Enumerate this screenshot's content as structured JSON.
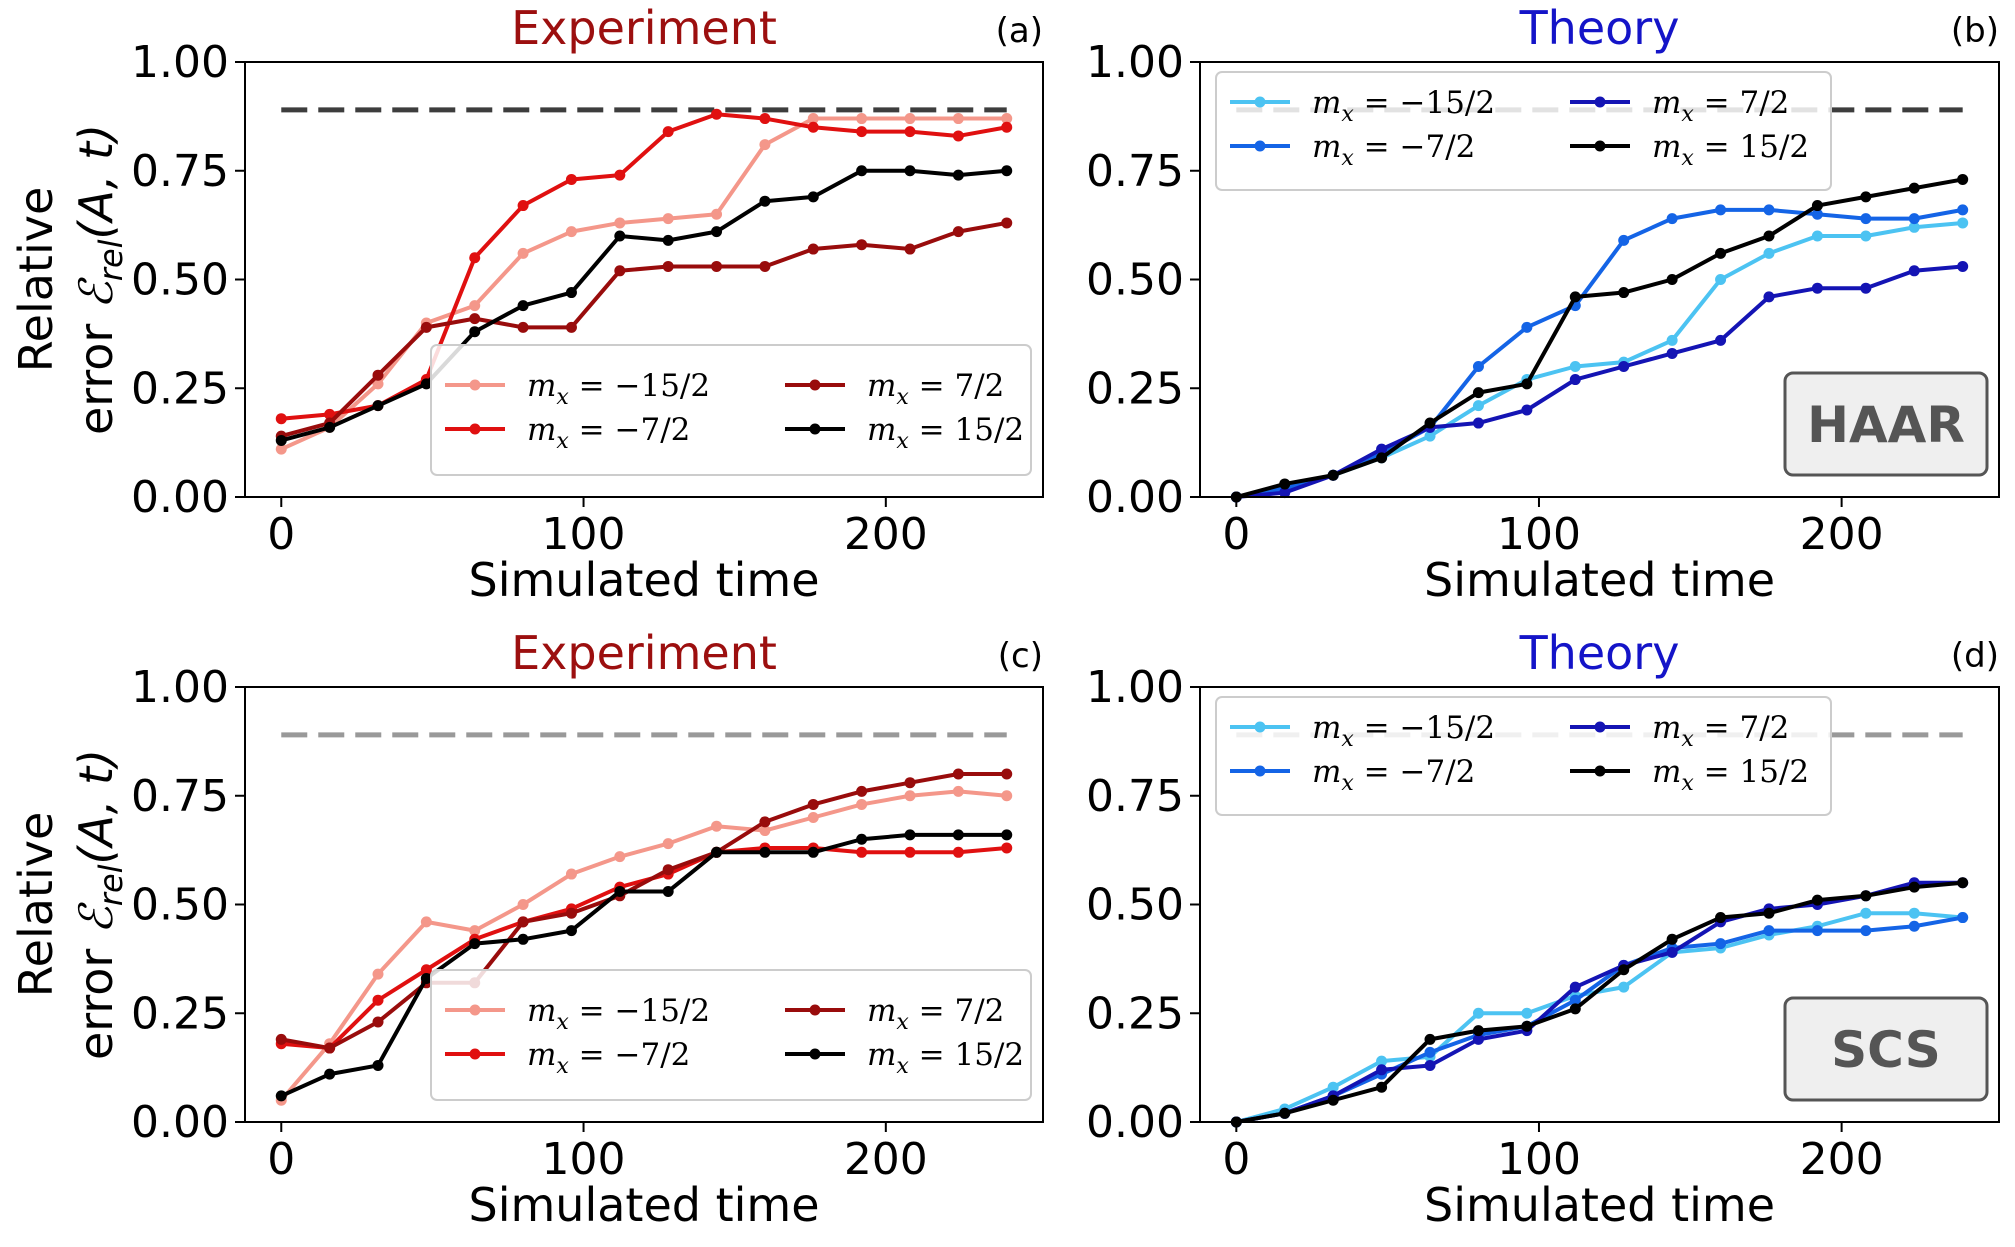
{
  "chart_data": [
    {
      "panel": "(a)",
      "type": "line",
      "title": "Experiment",
      "title_color": "#9c0f0f",
      "xlabel": "Simulated time",
      "ylabel_line1": "Relative",
      "ylabel_line2": "error ℰ_rel(A, t)",
      "xlim": [
        -12,
        252
      ],
      "ylim": [
        0,
        1
      ],
      "xticks": [
        0,
        100,
        200
      ],
      "yticks": [
        0.0,
        0.25,
        0.5,
        0.75,
        1.0
      ],
      "reference_line": {
        "y": 0.89,
        "color": "#3d3d3d"
      },
      "legend_placement": "lower-right",
      "x": [
        0,
        16,
        32,
        48,
        64,
        80,
        96,
        112,
        128,
        144,
        160,
        176,
        192,
        208,
        224,
        240
      ],
      "series": [
        {
          "name": "m_x = −15/2",
          "legend_label": "mx = −15/2",
          "color": "#f4978a",
          "values": [
            0.11,
            0.16,
            0.26,
            0.4,
            0.44,
            0.56,
            0.61,
            0.63,
            0.64,
            0.65,
            0.81,
            0.87,
            0.87,
            0.87,
            0.87,
            0.87
          ]
        },
        {
          "name": "m_x = −7/2",
          "legend_label": "mx = −7/2",
          "color": "#e01010",
          "values": [
            0.18,
            0.19,
            0.21,
            0.27,
            0.55,
            0.67,
            0.73,
            0.74,
            0.84,
            0.88,
            0.87,
            0.85,
            0.84,
            0.84,
            0.83,
            0.85
          ]
        },
        {
          "name": "m_x = 7/2",
          "legend_label": "mx = 7/2",
          "color": "#990c0c",
          "values": [
            0.14,
            0.17,
            0.28,
            0.39,
            0.41,
            0.39,
            0.39,
            0.52,
            0.53,
            0.53,
            0.53,
            0.57,
            0.58,
            0.57,
            0.61,
            0.63
          ]
        },
        {
          "name": "m_x = 15/2",
          "legend_label": "mx = 15/2",
          "color": "#000000",
          "values": [
            0.13,
            0.16,
            0.21,
            0.26,
            0.38,
            0.44,
            0.47,
            0.6,
            0.59,
            0.61,
            0.68,
            0.69,
            0.75,
            0.75,
            0.74,
            0.75
          ]
        }
      ]
    },
    {
      "panel": "(b)",
      "type": "line",
      "title": "Theory",
      "title_color": "#1414c8",
      "xlabel": "Simulated time",
      "xlim": [
        -12,
        252
      ],
      "ylim": [
        0,
        1
      ],
      "xticks": [
        0,
        100,
        200
      ],
      "yticks": [
        0.0,
        0.25,
        0.5,
        0.75,
        1.0
      ],
      "reference_line": {
        "y": 0.89,
        "color": "#3d3d3d"
      },
      "legend_placement": "top-left",
      "badge": "HAAR",
      "x": [
        0,
        16,
        32,
        48,
        64,
        80,
        96,
        112,
        128,
        144,
        160,
        176,
        192,
        208,
        224,
        240
      ],
      "series": [
        {
          "name": "m_x = −15/2",
          "legend_label": "mx = −15/2",
          "color": "#4cc3f2",
          "values": [
            0.0,
            0.02,
            0.05,
            0.09,
            0.14,
            0.21,
            0.27,
            0.3,
            0.31,
            0.36,
            0.5,
            0.56,
            0.6,
            0.6,
            0.62,
            0.63
          ]
        },
        {
          "name": "m_x = −7/2",
          "legend_label": "mx = −7/2",
          "color": "#1464e6",
          "values": [
            0.0,
            0.02,
            0.05,
            0.1,
            0.16,
            0.3,
            0.39,
            0.44,
            0.59,
            0.64,
            0.66,
            0.66,
            0.65,
            0.64,
            0.64,
            0.66
          ]
        },
        {
          "name": "m_x = 7/2",
          "legend_label": "mx = 7/2",
          "color": "#1414b4",
          "values": [
            0.0,
            0.01,
            0.05,
            0.11,
            0.16,
            0.17,
            0.2,
            0.27,
            0.3,
            0.33,
            0.36,
            0.46,
            0.48,
            0.48,
            0.52,
            0.53
          ]
        },
        {
          "name": "m_x = 15/2",
          "legend_label": "mx = 15/2",
          "color": "#000000",
          "values": [
            0.0,
            0.03,
            0.05,
            0.09,
            0.17,
            0.24,
            0.26,
            0.46,
            0.47,
            0.5,
            0.56,
            0.6,
            0.67,
            0.69,
            0.71,
            0.73
          ]
        }
      ]
    },
    {
      "panel": "(c)",
      "type": "line",
      "title": "Experiment",
      "title_color": "#9c0f0f",
      "xlabel": "Simulated time",
      "ylabel_line1": "Relative",
      "ylabel_line2": "error ℰ_rel(A, t)",
      "xlim": [
        -12,
        252
      ],
      "ylim": [
        0,
        1
      ],
      "xticks": [
        0,
        100,
        200
      ],
      "yticks": [
        0.0,
        0.25,
        0.5,
        0.75,
        1.0
      ],
      "reference_line": {
        "y": 0.89,
        "color": "#999999"
      },
      "legend_placement": "lower-right",
      "x": [
        0,
        16,
        32,
        48,
        64,
        80,
        96,
        112,
        128,
        144,
        160,
        176,
        192,
        208,
        224,
        240
      ],
      "series": [
        {
          "name": "m_x = −15/2",
          "legend_label": "mx = −15/2",
          "color": "#f4978a",
          "values": [
            0.05,
            0.18,
            0.34,
            0.46,
            0.44,
            0.5,
            0.57,
            0.61,
            0.64,
            0.68,
            0.67,
            0.7,
            0.73,
            0.75,
            0.76,
            0.75
          ]
        },
        {
          "name": "m_x = −7/2",
          "legend_label": "mx = −7/2",
          "color": "#e01010",
          "values": [
            0.18,
            0.17,
            0.28,
            0.35,
            0.42,
            0.46,
            0.49,
            0.54,
            0.57,
            0.62,
            0.63,
            0.63,
            0.62,
            0.62,
            0.62,
            0.63
          ]
        },
        {
          "name": "m_x = 7/2",
          "legend_label": "mx = 7/2",
          "color": "#990c0c",
          "values": [
            0.19,
            0.17,
            0.23,
            0.32,
            0.32,
            0.46,
            0.48,
            0.52,
            0.58,
            0.62,
            0.69,
            0.73,
            0.76,
            0.78,
            0.8,
            0.8
          ]
        },
        {
          "name": "m_x = 15/2",
          "legend_label": "mx = 15/2",
          "color": "#000000",
          "values": [
            0.06,
            0.11,
            0.13,
            0.33,
            0.41,
            0.42,
            0.44,
            0.53,
            0.53,
            0.62,
            0.62,
            0.62,
            0.65,
            0.66,
            0.66,
            0.66
          ]
        }
      ]
    },
    {
      "panel": "(d)",
      "type": "line",
      "title": "Theory",
      "title_color": "#1414c8",
      "xlabel": "Simulated time",
      "xlim": [
        -12,
        252
      ],
      "ylim": [
        0,
        1
      ],
      "xticks": [
        0,
        100,
        200
      ],
      "yticks": [
        0.0,
        0.25,
        0.5,
        0.75,
        1.0
      ],
      "reference_line": {
        "y": 0.89,
        "color": "#999999"
      },
      "legend_placement": "top-left",
      "badge": "SCS",
      "x": [
        0,
        16,
        32,
        48,
        64,
        80,
        96,
        112,
        128,
        144,
        160,
        176,
        192,
        208,
        224,
        240
      ],
      "series": [
        {
          "name": "m_x = −15/2",
          "legend_label": "mx = −15/2",
          "color": "#4cc3f2",
          "values": [
            0.0,
            0.03,
            0.08,
            0.14,
            0.15,
            0.25,
            0.25,
            0.29,
            0.31,
            0.39,
            0.4,
            0.43,
            0.45,
            0.48,
            0.48,
            0.47
          ]
        },
        {
          "name": "m_x = −7/2",
          "legend_label": "mx = −7/2",
          "color": "#1464e6",
          "values": [
            0.0,
            0.02,
            0.06,
            0.11,
            0.16,
            0.2,
            0.22,
            0.28,
            0.36,
            0.4,
            0.41,
            0.44,
            0.44,
            0.44,
            0.45,
            0.47
          ]
        },
        {
          "name": "m_x = 7/2",
          "legend_label": "mx = 7/2",
          "color": "#1414b4",
          "values": [
            0.0,
            0.02,
            0.06,
            0.12,
            0.13,
            0.19,
            0.21,
            0.31,
            0.36,
            0.39,
            0.46,
            0.49,
            0.5,
            0.52,
            0.55,
            0.55
          ]
        },
        {
          "name": "m_x = 15/2",
          "legend_label": "mx = 15/2",
          "color": "#000000",
          "values": [
            0.0,
            0.02,
            0.05,
            0.08,
            0.19,
            0.21,
            0.22,
            0.26,
            0.35,
            0.42,
            0.47,
            0.48,
            0.51,
            0.52,
            0.54,
            0.55
          ]
        }
      ]
    }
  ]
}
